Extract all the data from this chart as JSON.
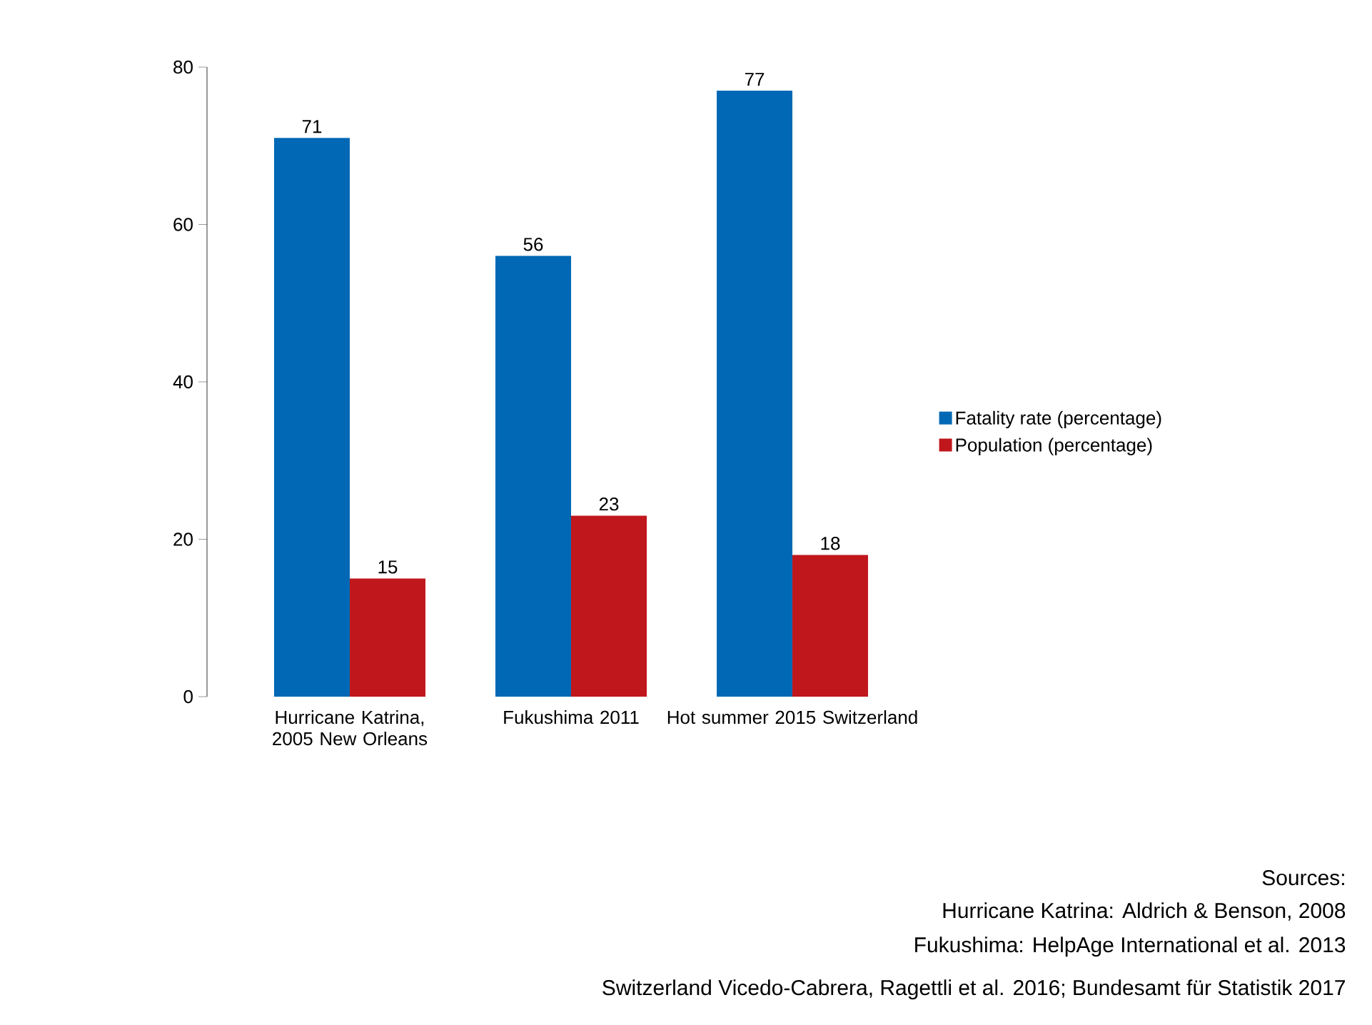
{
  "chart_data": {
    "type": "bar",
    "categories": [
      "Hurricane Katrina, 2005 New Orleans",
      "Fukushima 2011",
      "Hot summer 2015 Switzerland"
    ],
    "series": [
      {
        "name": "Fatality rate (percentage)",
        "color": "#0068b4",
        "values": [
          71,
          56,
          77
        ]
      },
      {
        "name": "Population (percentage)",
        "color": "#c0171c",
        "values": [
          15,
          23,
          18
        ]
      }
    ],
    "ylim": [
      0,
      80
    ],
    "yticks": [
      0,
      20,
      40,
      60,
      80
    ],
    "data_labels": true,
    "legend": "right",
    "grid": false,
    "annotations": [
      "Sources:",
      "Hurricane Katrina: Aldrich & Benson, 2008",
      "Fukushima: HelpAge International et al. 2013",
      "Switzerland Vicedo-Cabrera, Ragettli et al. 2016; Bundesamt für Statistik 2017"
    ]
  }
}
